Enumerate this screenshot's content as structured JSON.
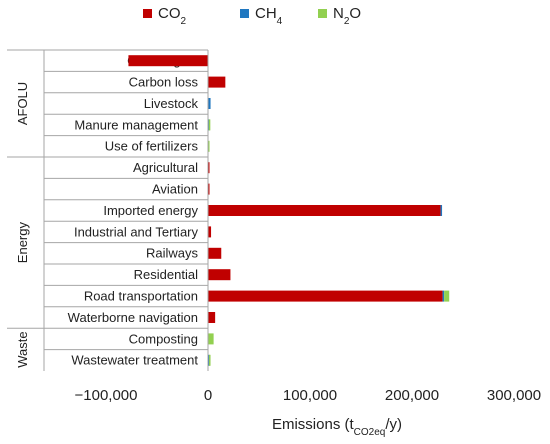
{
  "chart_data": {
    "type": "bar",
    "orientation": "horizontal",
    "stacked": true,
    "xlabel": {
      "main": "Emissions (t",
      "sub": "CO2eq",
      "tail": "/y)"
    },
    "xlim": [
      -100000,
      300000
    ],
    "x_ticks": [
      {
        "value": -100000,
        "label": "−100,000"
      },
      {
        "value": 0,
        "label": "0"
      },
      {
        "value": 100000,
        "label": "100,000"
      },
      {
        "value": 200000,
        "label": "200,000"
      },
      {
        "value": 300000,
        "label": "300,000"
      }
    ],
    "grid": false,
    "legend_position": "top",
    "groups": [
      {
        "label": "AFOLU",
        "categories": [
          "Carbon gain",
          "Carbon loss",
          "Livestock",
          "Manure management",
          "Use of fertilizers"
        ]
      },
      {
        "label": "Energy",
        "categories": [
          "Agricultural",
          "Aviation",
          "Imported energy",
          "Industrial and Tertiary",
          "Railways",
          "Residential",
          "Road transportation",
          "Waterborne navigation"
        ]
      },
      {
        "label": "Waste",
        "categories": [
          "Composting",
          "Wastewater treatment"
        ]
      }
    ],
    "categories": [
      "Carbon gain",
      "Carbon loss",
      "Livestock",
      "Manure management",
      "Use of fertilizers",
      "Agricultural",
      "Aviation",
      "Imported energy",
      "Industrial and Tertiary",
      "Railways",
      "Residential",
      "Road transportation",
      "Waterborne navigation",
      "Composting",
      "Wastewater treatment"
    ],
    "series": [
      {
        "name": "CO2",
        "legend": {
          "base": "CO",
          "sub": "2",
          "tail": ""
        },
        "color": "#c00000",
        "values": [
          -78000,
          17000,
          0,
          0,
          0,
          500,
          800,
          228000,
          3000,
          13000,
          22000,
          230000,
          7000,
          0,
          0
        ]
      },
      {
        "name": "CH4",
        "legend": {
          "base": "CH",
          "sub": "",
          "tail": "4"
        },
        "color": "#1f77c0",
        "values": [
          0,
          0,
          2500,
          800,
          0,
          0,
          0,
          1000,
          0,
          0,
          0,
          1500,
          0,
          0,
          1000
        ]
      },
      {
        "name": "N2O",
        "legend": {
          "base": "N",
          "sub": "2",
          "tail": "O"
        },
        "color": "#92d050",
        "values": [
          0,
          0,
          0,
          800,
          800,
          0,
          0,
          0,
          0,
          0,
          0,
          5000,
          0,
          5500,
          500
        ]
      }
    ]
  }
}
